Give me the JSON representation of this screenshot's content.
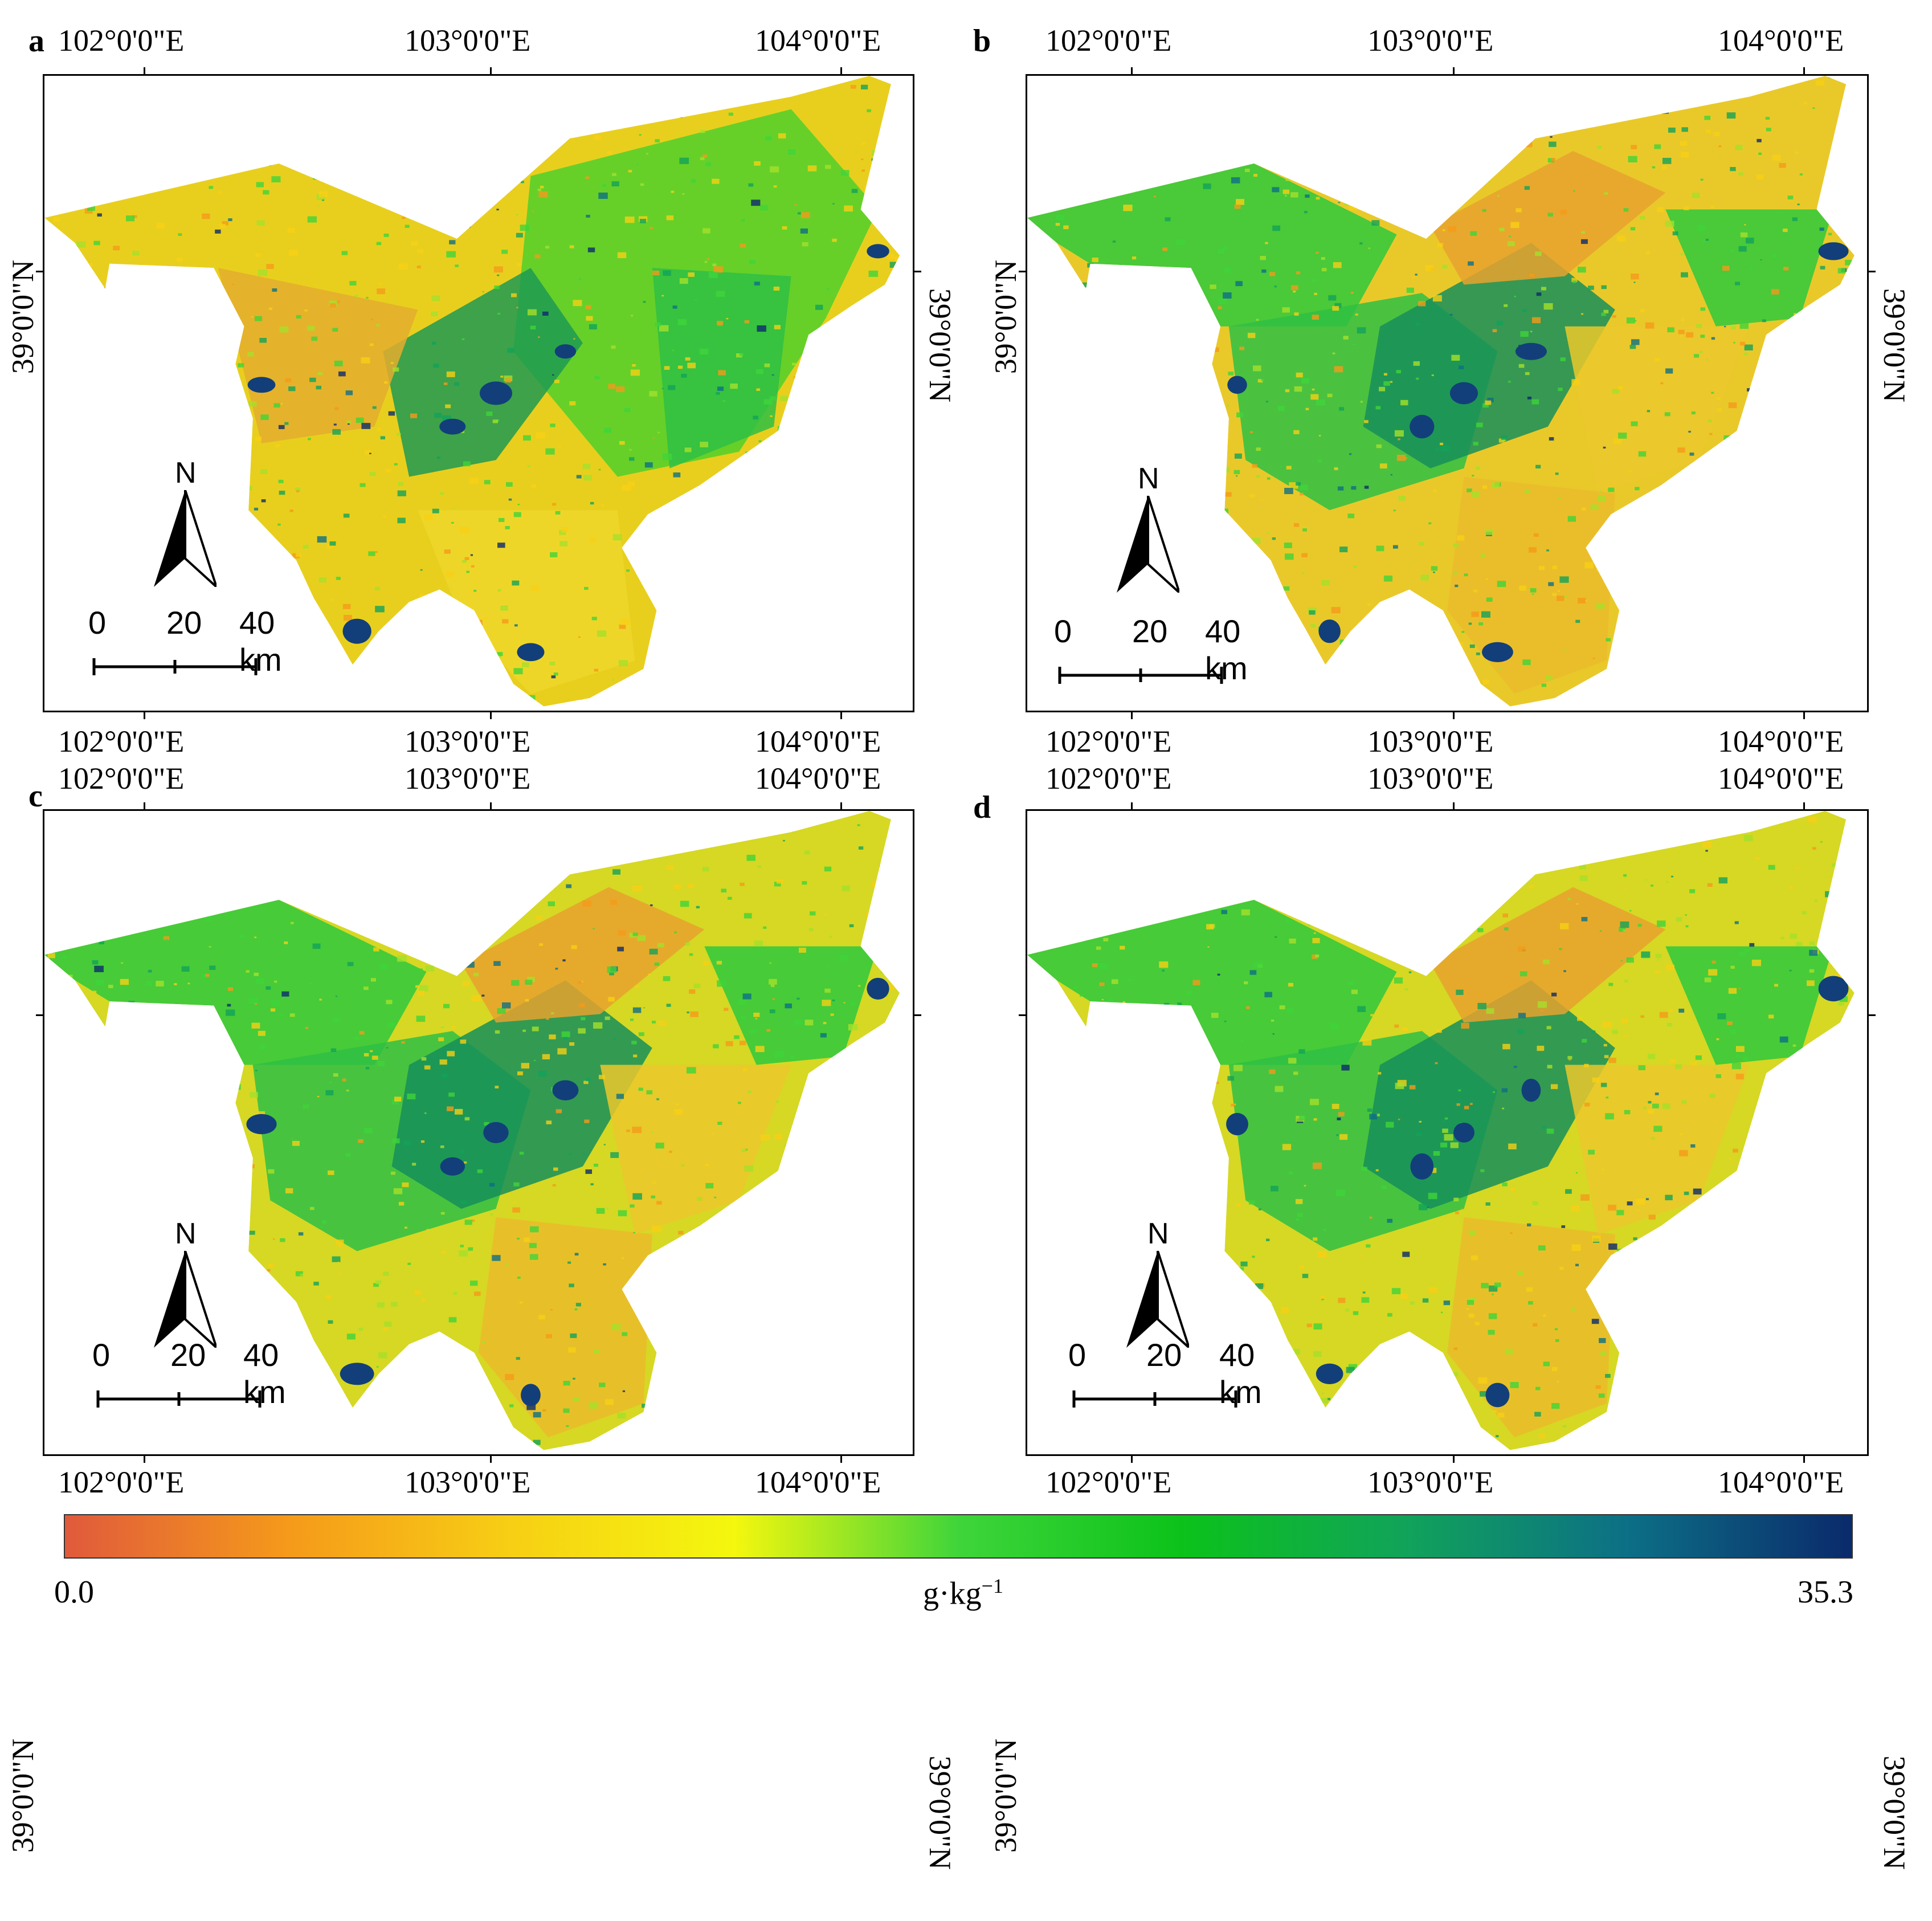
{
  "figure": {
    "panels": [
      {
        "id": "a",
        "label": "a",
        "top_lon": [
          "102°0'0\"E",
          "103°0'0\"E",
          "104°0'0\"E"
        ],
        "bottom_lon": [
          "102°0'0\"E",
          "103°0'0\"E",
          "104°0'0\"E"
        ],
        "lat": "39°0'0\"N",
        "north": "N",
        "scale": [
          "0",
          "20",
          "40 km"
        ]
      },
      {
        "id": "b",
        "label": "b",
        "top_lon": [
          "102°0'0\"E",
          "103°0'0\"E",
          "104°0'0\"E"
        ],
        "bottom_lon": [
          "102°0'0\"E",
          "103°0'0\"E",
          "104°0'0\"E"
        ],
        "lat": "39°0'0\"N",
        "north": "N",
        "scale": [
          "0",
          "20",
          "40 km"
        ]
      },
      {
        "id": "c",
        "label": "c",
        "top_lon": [
          "102°0'0\"E",
          "103°0'0\"E",
          "104°0'0\"E"
        ],
        "bottom_lon": [
          "102°0'0\"E",
          "103°0'0\"E",
          "104°0'0\"E"
        ],
        "lat": "39°0'0\"N",
        "north": "N",
        "scale": [
          "0",
          "20",
          "40 km"
        ]
      },
      {
        "id": "d",
        "label": "d",
        "top_lon": [
          "102°0'0\"E",
          "103°0'0\"E",
          "104°0'0\"E"
        ],
        "bottom_lon": [
          "102°0'0\"E",
          "103°0'0\"E",
          "104°0'0\"E"
        ],
        "lat": "39°0'0\"N",
        "north": "N",
        "scale": [
          "0",
          "20",
          "40 km"
        ]
      }
    ],
    "colorbar": {
      "min_label": "0.0",
      "max_label": "35.3",
      "unit_base": "g·kg",
      "unit_exp": "−1",
      "stops": [
        "#e05a3c",
        "#f59a1a",
        "#f7cf14",
        "#f4f70e",
        "#3fd53a",
        "#0cc21a",
        "#11a35a",
        "#0c6f86",
        "#0b2a6b"
      ]
    }
  }
}
